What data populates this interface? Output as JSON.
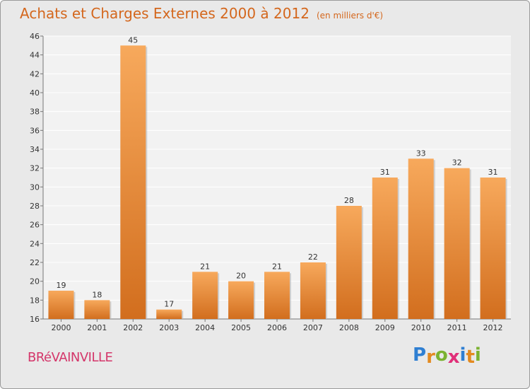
{
  "chart_data": {
    "type": "bar",
    "title": "Achats et Charges Externes 2000 à 2012",
    "subtitle": "(en milliers d'€)",
    "categories": [
      "2000",
      "2001",
      "2002",
      "2003",
      "2004",
      "2005",
      "2006",
      "2007",
      "2008",
      "2009",
      "2010",
      "2011",
      "2012"
    ],
    "values": [
      19,
      18,
      45,
      17,
      21,
      20,
      21,
      22,
      28,
      31,
      33,
      32,
      31
    ],
    "ylim": [
      16,
      46
    ],
    "yticks": [
      16,
      18,
      20,
      22,
      24,
      26,
      28,
      30,
      32,
      34,
      36,
      38,
      40,
      42,
      44,
      46
    ],
    "grid": true,
    "colors": {
      "bar_light": "#f7a95c",
      "bar_dark": "#d26e1e",
      "title": "#d4671d"
    }
  },
  "commune": "BRéVAINVILLE",
  "logo": {
    "letters": [
      "P",
      "r",
      "o",
      "x",
      "i",
      "t",
      "i"
    ],
    "colors": [
      "#2f7fd2",
      "#e38a1f",
      "#7bb231",
      "#e02f78",
      "#2f7fd2",
      "#e38a1f",
      "#7bb231"
    ]
  }
}
